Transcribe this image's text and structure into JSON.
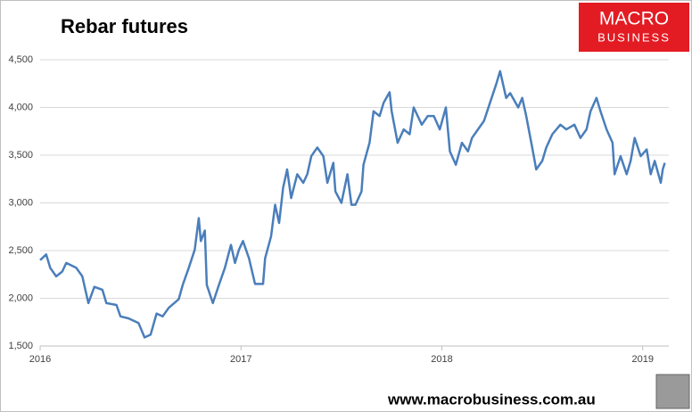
{
  "chart_data": {
    "type": "line",
    "title": "Rebar futures",
    "x": [
      2016.0,
      2016.03,
      2016.05,
      2016.08,
      2016.11,
      2016.13,
      2016.18,
      2016.21,
      2016.24,
      2016.27,
      2016.31,
      2016.33,
      2016.38,
      2016.4,
      2016.44,
      2016.49,
      2016.52,
      2016.55,
      2016.58,
      2016.61,
      2016.64,
      2016.69,
      2016.71,
      2016.74,
      2016.77,
      2016.79,
      2016.8,
      2016.82,
      2016.83,
      2016.86,
      2016.89,
      2016.92,
      2016.95,
      2016.97,
      2016.99,
      2017.01,
      2017.04,
      2017.07,
      2017.11,
      2017.12,
      2017.15,
      2017.17,
      2017.19,
      2017.21,
      2017.23,
      2017.25,
      2017.28,
      2017.31,
      2017.33,
      2017.35,
      2017.38,
      2017.41,
      2017.43,
      2017.46,
      2017.47,
      2017.5,
      2017.53,
      2017.55,
      2017.57,
      2017.6,
      2017.61,
      2017.64,
      2017.66,
      2017.69,
      2017.71,
      2017.74,
      2017.75,
      2017.78,
      2017.81,
      2017.84,
      2017.86,
      2017.9,
      2017.93,
      2017.96,
      2017.99,
      2018.02,
      2018.04,
      2018.07,
      2018.1,
      2018.13,
      2018.15,
      2018.18,
      2018.21,
      2018.24,
      2018.27,
      2018.29,
      2018.32,
      2018.34,
      2018.38,
      2018.4,
      2018.42,
      2018.45,
      2018.47,
      2018.5,
      2018.52,
      2018.55,
      2018.59,
      2018.62,
      2018.66,
      2018.69,
      2018.72,
      2018.74,
      2018.77,
      2018.79,
      2018.82,
      2018.85,
      2018.86,
      2018.89,
      2018.92,
      2018.94,
      2018.96,
      2018.99,
      2019.02,
      2019.04,
      2019.06,
      2019.09,
      2019.1,
      2019.11
    ],
    "series": [
      {
        "color": "#4a7ebb",
        "values": [
          2400,
          2460,
          2320,
          2230,
          2280,
          2370,
          2320,
          2230,
          1950,
          2120,
          2090,
          1950,
          1930,
          1810,
          1790,
          1740,
          1590,
          1620,
          1840,
          1810,
          1900,
          1990,
          2140,
          2320,
          2510,
          2840,
          2600,
          2710,
          2140,
          1950,
          2140,
          2320,
          2560,
          2370,
          2510,
          2600,
          2420,
          2150,
          2150,
          2420,
          2650,
          2980,
          2790,
          3160,
          3350,
          3050,
          3300,
          3210,
          3300,
          3490,
          3580,
          3490,
          3210,
          3420,
          3120,
          3000,
          3300,
          2980,
          2980,
          3120,
          3400,
          3630,
          3960,
          3910,
          4050,
          4160,
          3960,
          3630,
          3770,
          3720,
          4000,
          3820,
          3910,
          3910,
          3770,
          4000,
          3540,
          3400,
          3630,
          3540,
          3680,
          3770,
          3860,
          4050,
          4240,
          4380,
          4100,
          4150,
          4000,
          4100,
          3910,
          3580,
          3350,
          3440,
          3580,
          3720,
          3820,
          3770,
          3820,
          3680,
          3770,
          3960,
          4100,
          3960,
          3770,
          3630,
          3300,
          3490,
          3300,
          3440,
          3680,
          3490,
          3560,
          3300,
          3440,
          3210,
          3350,
          3420
        ]
      }
    ],
    "xlim": [
      2016,
      2019.13
    ],
    "xticks": [
      2016,
      2017,
      2018,
      2019
    ],
    "ylim": [
      1500,
      4500
    ],
    "yticks": [
      {
        "value": 1500,
        "label": "1,500"
      },
      {
        "value": 2000,
        "label": "2,000"
      },
      {
        "value": 2500,
        "label": "2,500"
      },
      {
        "value": 3000,
        "label": "3,000"
      },
      {
        "value": 3500,
        "label": "3,500"
      },
      {
        "value": 4000,
        "label": "4,000"
      },
      {
        "value": 4500,
        "label": "4,500"
      }
    ],
    "grid": true
  },
  "logo": {
    "line1": "MACRO",
    "line2": "BUSINESS"
  },
  "footer": "www.macrobusiness.com.au"
}
